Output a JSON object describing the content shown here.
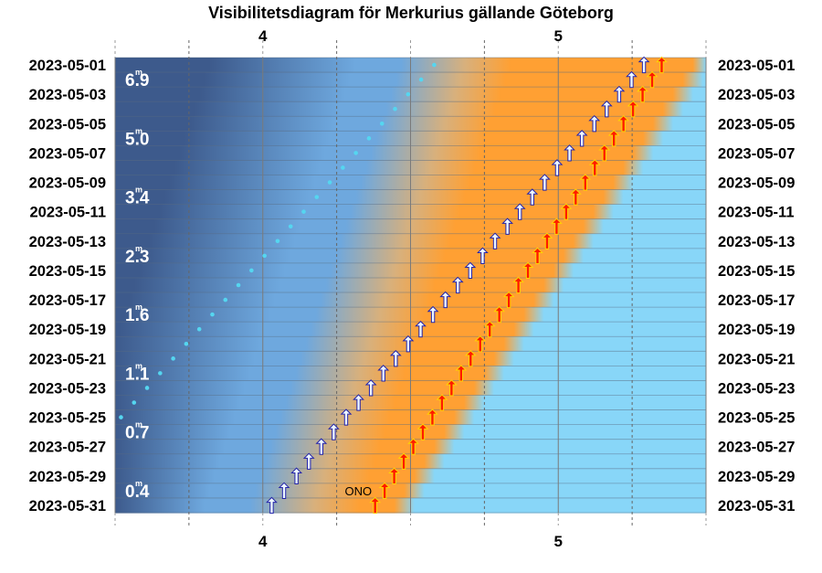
{
  "chart_data": {
    "type": "visibility-diagram",
    "title": "Visibilitetsdiagram för Merkurius gällande Göteborg",
    "x_axis": {
      "unit": "hour (UT)",
      "range": [
        3.5,
        5.5
      ],
      "tick_labels": [
        {
          "value": 4,
          "label": "4"
        },
        {
          "value": 5,
          "label": "5"
        }
      ],
      "dashed_lines": [
        3.75,
        4.25,
        4.75,
        5.25
      ],
      "solid_lines": [
        3.5,
        4,
        4.5,
        5,
        5.5
      ]
    },
    "dates": [
      "2023-05-01",
      "2023-05-02",
      "2023-05-03",
      "2023-05-04",
      "2023-05-05",
      "2023-05-06",
      "2023-05-07",
      "2023-05-08",
      "2023-05-09",
      "2023-05-10",
      "2023-05-11",
      "2023-05-12",
      "2023-05-13",
      "2023-05-14",
      "2023-05-15",
      "2023-05-16",
      "2023-05-17",
      "2023-05-18",
      "2023-05-19",
      "2023-05-20",
      "2023-05-21",
      "2023-05-22",
      "2023-05-23",
      "2023-05-24",
      "2023-05-25",
      "2023-05-26",
      "2023-05-27",
      "2023-05-28",
      "2023-05-29",
      "2023-05-30",
      "2023-05-31"
    ],
    "date_labels": [
      "2023-05-01",
      "2023-05-03",
      "2023-05-05",
      "2023-05-07",
      "2023-05-09",
      "2023-05-11",
      "2023-05-13",
      "2023-05-15",
      "2023-05-17",
      "2023-05-19",
      "2023-05-21",
      "2023-05-23",
      "2023-05-25",
      "2023-05-27",
      "2023-05-29",
      "2023-05-31"
    ],
    "magnitude_labels": [
      {
        "date": "2023-05-02",
        "text": "6.9"
      },
      {
        "date": "2023-05-06",
        "text": "5.0"
      },
      {
        "date": "2023-05-10",
        "text": "3.4"
      },
      {
        "date": "2023-05-14",
        "text": "2.3"
      },
      {
        "date": "2023-05-18",
        "text": "1.6"
      },
      {
        "date": "2023-05-22",
        "text": "1.1"
      },
      {
        "date": "2023-05-26",
        "text": "0.7"
      },
      {
        "date": "2023-05-30",
        "text": "0.4"
      }
    ],
    "twilight": {
      "dawn_start": {
        "first": 4.53,
        "last": 4.02
      },
      "sunrise": {
        "first": 5.48,
        "last": 4.47
      }
    },
    "mercury_rise": {
      "first": 4.58,
      "last": 3.52,
      "last_date": "2023-05-25"
    },
    "white_arrows": {
      "first": 5.29,
      "last": 4.03
    },
    "red_arrows": {
      "first": 5.35,
      "last": 4.38
    },
    "direction_label": {
      "date": "2023-05-30",
      "text": "ONO"
    },
    "colors": {
      "night": "#3d5a8c",
      "twilight_blue": "#6ea8de",
      "twilight_orange": "#ffa033",
      "daylight": "#88d6f8",
      "dot": "#55d6f0",
      "white_arrow": "#eef8ff",
      "red_arrow": "#ff1a00",
      "arrow_outline": "#2222aa"
    }
  }
}
